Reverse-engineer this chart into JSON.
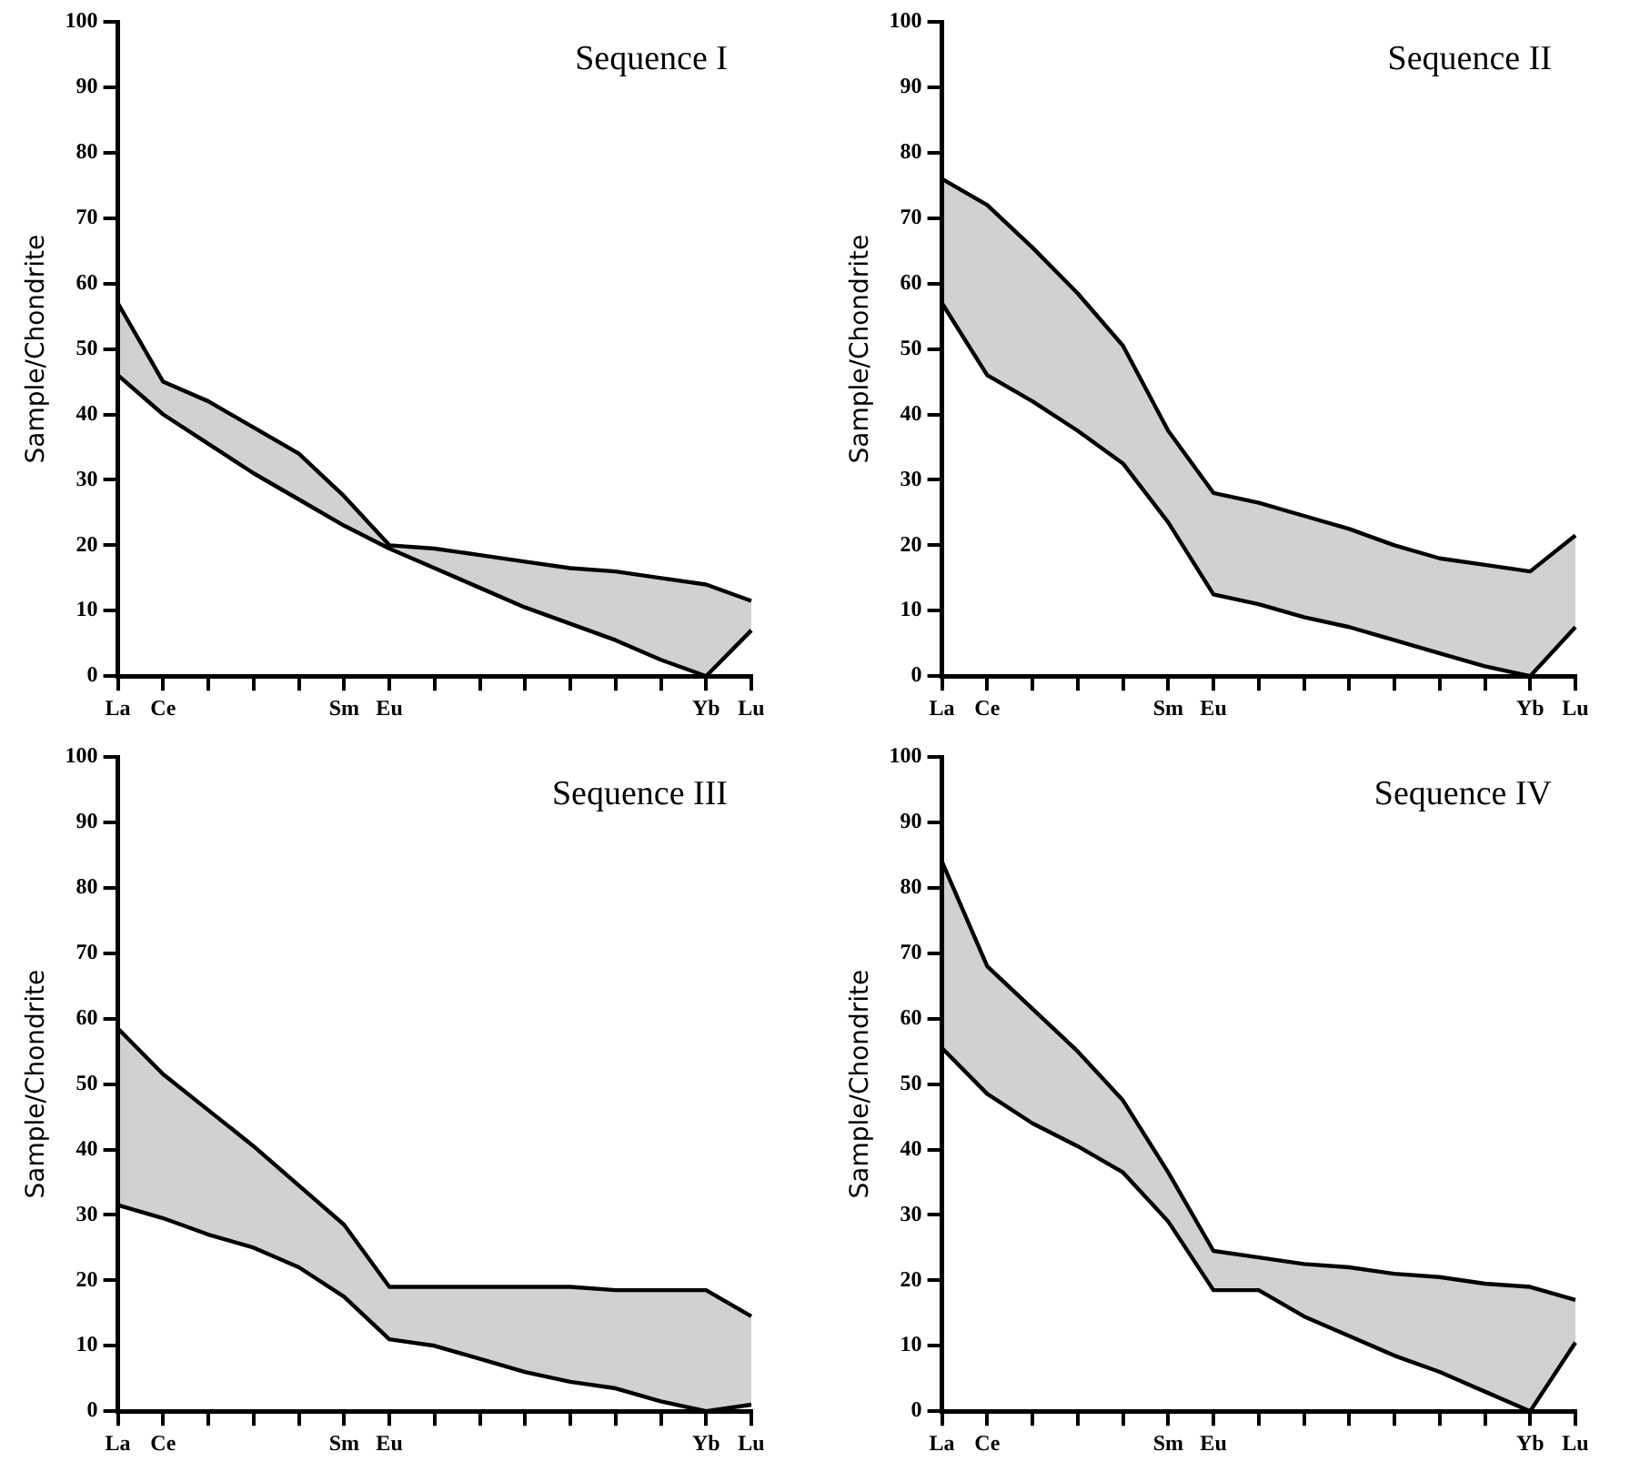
{
  "chart_data": [
    {
      "type": "line",
      "title": "Sequence I",
      "ylabel": "Sample/Chondrite",
      "categories": [
        "La",
        "Ce",
        null,
        null,
        null,
        "Sm",
        "Eu",
        null,
        null,
        null,
        null,
        null,
        null,
        "Yb",
        "Lu"
      ],
      "ylim": [
        0,
        100
      ],
      "yticks": [
        0,
        10,
        20,
        30,
        40,
        50,
        60,
        70,
        80,
        90,
        100
      ],
      "grid": false,
      "legend": false,
      "marker": "none",
      "series": [
        {
          "color": "#000000",
          "values": [
            57,
            45,
            42,
            38,
            34,
            27.5,
            20,
            19.5,
            18.5,
            17.5,
            16.5,
            16,
            15,
            14,
            11.5
          ],
          "upper": [
            57,
            45,
            42,
            38,
            34,
            27.5,
            20,
            19.5,
            18.5,
            17.5,
            16.5,
            16,
            15,
            14,
            11.5
          ],
          "lower": [
            46,
            40,
            35.5,
            31,
            27,
            23,
            19.5,
            16.5,
            13.5,
            10.5,
            8,
            5.5,
            2.5,
            0,
            7
          ]
        },
        {
          "color": "#000000",
          "values": [
            46,
            40,
            35.5,
            31,
            27,
            23,
            19.5,
            16.5,
            13.5,
            10.5,
            8,
            5.5,
            2.5,
            0,
            7
          ]
        }
      ]
    },
    {
      "type": "line",
      "title": "Sequence II",
      "ylabel": "Sample/Chondrite",
      "categories": [
        "La",
        "Ce",
        null,
        null,
        null,
        "Sm",
        "Eu",
        null,
        null,
        null,
        null,
        null,
        null,
        "Yb",
        "Lu"
      ],
      "ylim": [
        0,
        100
      ],
      "yticks": [
        0,
        10,
        20,
        30,
        40,
        50,
        60,
        70,
        80,
        90,
        100
      ],
      "grid": false,
      "legend": false,
      "marker": "none",
      "series": [
        {
          "color": "#000000",
          "values": [
            76,
            72,
            65.5,
            58.5,
            50.5,
            37.5,
            28,
            26.5,
            24.5,
            22.5,
            20,
            18,
            17,
            16,
            21.5
          ],
          "upper": [
            76,
            72,
            65.5,
            58.5,
            50.5,
            37.5,
            28,
            26.5,
            24.5,
            22.5,
            20,
            18,
            17,
            16,
            21.5
          ],
          "lower": [
            57,
            46,
            42,
            37.5,
            32.5,
            23.5,
            12.5,
            11,
            9,
            7.5,
            5.5,
            3.5,
            1.5,
            0,
            7.5
          ]
        },
        {
          "color": "#000000",
          "values": [
            57,
            46,
            42,
            37.5,
            32.5,
            23.5,
            12.5,
            11,
            9,
            7.5,
            5.5,
            3.5,
            1.5,
            0,
            7.5
          ]
        }
      ]
    },
    {
      "type": "line",
      "title": "Sequence III",
      "ylabel": "Sample/Chondrite",
      "categories": [
        "La",
        "Ce",
        null,
        null,
        null,
        "Sm",
        "Eu",
        null,
        null,
        null,
        null,
        null,
        null,
        "Yb",
        "Lu"
      ],
      "ylim": [
        0,
        100
      ],
      "yticks": [
        0,
        10,
        20,
        30,
        40,
        50,
        60,
        70,
        80,
        90,
        100
      ],
      "grid": false,
      "legend": false,
      "marker": "none",
      "series": [
        {
          "color": "#000000",
          "values": [
            58.5,
            51.5,
            46,
            40.5,
            34.5,
            28.5,
            19,
            19,
            19,
            19,
            19,
            18.5,
            18.5,
            18.5,
            14.5
          ],
          "upper": [
            58.5,
            51.5,
            46,
            40.5,
            34.5,
            28.5,
            19,
            19,
            19,
            19,
            19,
            18.5,
            18.5,
            18.5,
            14.5
          ],
          "lower": [
            31.5,
            29.5,
            27,
            25,
            22,
            17.5,
            11,
            10,
            8,
            6,
            4.5,
            3.5,
            1.5,
            0,
            1
          ]
        },
        {
          "color": "#000000",
          "values": [
            31.5,
            29.5,
            27,
            25,
            22,
            17.5,
            11,
            10,
            8,
            6,
            4.5,
            3.5,
            1.5,
            0,
            1
          ]
        }
      ]
    },
    {
      "type": "line",
      "title": "Sequence IV",
      "ylabel": "Sample/Chondrite",
      "categories": [
        "La",
        "Ce",
        null,
        null,
        null,
        "Sm",
        "Eu",
        null,
        null,
        null,
        null,
        null,
        null,
        "Yb",
        "Lu"
      ],
      "ylim": [
        0,
        100
      ],
      "yticks": [
        0,
        10,
        20,
        30,
        40,
        50,
        60,
        70,
        80,
        90,
        100
      ],
      "grid": false,
      "legend": false,
      "marker": "none",
      "series": [
        {
          "color": "#000000",
          "values": [
            84,
            68,
            61.5,
            55,
            47.5,
            36.5,
            24.5,
            23.5,
            22.5,
            22,
            21,
            20.5,
            19.5,
            19,
            17
          ],
          "upper": [
            84,
            68,
            61.5,
            55,
            47.5,
            36.5,
            24.5,
            23.5,
            22.5,
            22,
            21,
            20.5,
            19.5,
            19,
            17
          ],
          "lower": [
            55.5,
            48.5,
            44,
            40.5,
            36.5,
            29,
            18.5,
            18.5,
            14.5,
            11.5,
            8.5,
            6,
            3,
            0,
            10.5
          ]
        },
        {
          "color": "#000000",
          "values": [
            55.5,
            48.5,
            44,
            40.5,
            36.5,
            29,
            18.5,
            18.5,
            14.5,
            11.5,
            8.5,
            6,
            3,
            0,
            10.5
          ]
        }
      ]
    }
  ]
}
